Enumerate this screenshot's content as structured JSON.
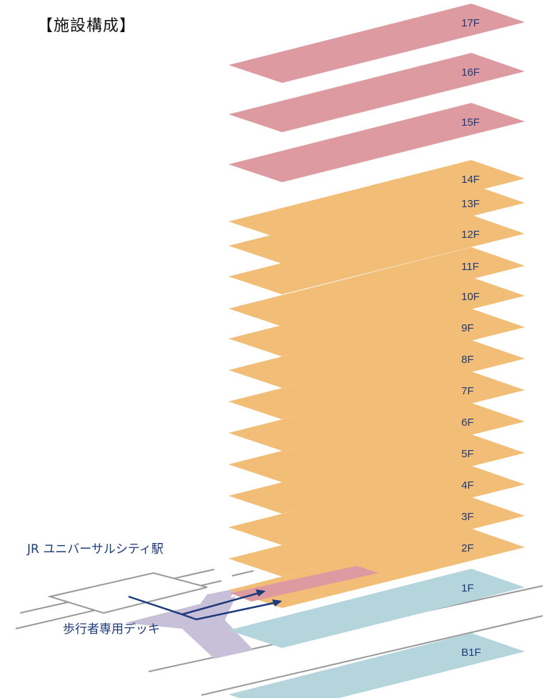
{
  "title": "【施設構成】",
  "station_label": "JR ユニバーサルシティ駅",
  "deck_label": "歩行者専用デッキ",
  "colors": {
    "upper": "#dd9ba1",
    "middle": "#f2bd76",
    "lower": "#b3d5db",
    "deck": "#c8bfd9",
    "line": "#999999",
    "arrow": "#1d3a7a",
    "label": "#1d3a7a"
  },
  "floors": [
    {
      "label": "17F",
      "zone": "upper"
    },
    {
      "label": "16F",
      "zone": "upper"
    },
    {
      "label": "15F",
      "zone": "upper"
    },
    {
      "label": "14F",
      "zone": "middle"
    },
    {
      "label": "13F",
      "zone": "middle"
    },
    {
      "label": "12F",
      "zone": "middle"
    },
    {
      "label": "11F",
      "zone": "middle"
    },
    {
      "label": "10F",
      "zone": "middle"
    },
    {
      "label": "9F",
      "zone": "middle"
    },
    {
      "label": "8F",
      "zone": "middle"
    },
    {
      "label": "7F",
      "zone": "middle"
    },
    {
      "label": "6F",
      "zone": "middle"
    },
    {
      "label": "5F",
      "zone": "middle"
    },
    {
      "label": "4F",
      "zone": "middle"
    },
    {
      "label": "3F",
      "zone": "middle"
    },
    {
      "label": "2F",
      "zone": "middle"
    },
    {
      "label": "1F",
      "zone": "lower"
    },
    {
      "label": "B1F",
      "zone": "lower"
    }
  ]
}
